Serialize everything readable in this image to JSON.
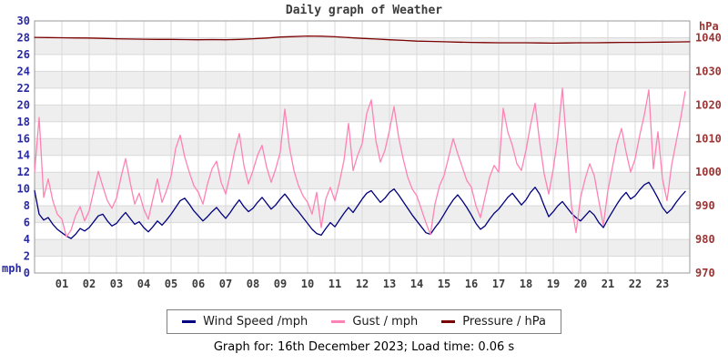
{
  "title": "Daily graph of Weather",
  "caption": {
    "text": "Graph for: 16th December 2023; Load time: 0.06 s"
  },
  "axis_units": {
    "left": "mph",
    "right": "hPa"
  },
  "legend": {
    "items": [
      {
        "label": "Wind Speed /mph",
        "color": "#00007e"
      },
      {
        "label": "Gust / mph",
        "color": "#ff82b4"
      },
      {
        "label": "Pressure / hPa",
        "color": "#7d0000"
      }
    ]
  },
  "colors": {
    "band_gray": "#eeeeee",
    "grid": "#d9d9d9",
    "plot_border": "#9a9a9a",
    "left_axis_text": "#2929a3",
    "right_axis_text": "#9c3434",
    "x_axis_text": "#3c3c3c",
    "wind": "#00007e",
    "gust": "#ff82b4",
    "pressure": "#7d0000"
  },
  "chart_data": {
    "type": "line",
    "title": "Daily graph of Weather",
    "grid": true,
    "legend_position": "bottom-center",
    "x_axis": {
      "range_hours": [
        0,
        24
      ],
      "tick_labels": [
        "01",
        "02",
        "03",
        "04",
        "05",
        "06",
        "07",
        "08",
        "09",
        "10",
        "11",
        "12",
        "13",
        "14",
        "15",
        "16",
        "17",
        "18",
        "19",
        "20",
        "21",
        "22",
        "23"
      ]
    },
    "y_left": {
      "label": "mph",
      "range": [
        0,
        30
      ],
      "ticks": [
        30,
        28,
        26,
        24,
        22,
        20,
        18,
        16,
        14,
        12,
        10,
        8,
        6,
        4,
        2,
        0
      ]
    },
    "y_right": {
      "label": "hPa",
      "range": [
        970,
        1045
      ],
      "ticks": [
        1040,
        1030,
        1020,
        1010,
        1000,
        990,
        980,
        970
      ]
    },
    "series": [
      {
        "name": "Wind Speed /mph",
        "axis": "left",
        "color": "#00007e",
        "interval_minutes": 10,
        "values": [
          9.8,
          7.0,
          6.3,
          6.6,
          5.8,
          5.2,
          4.8,
          4.4,
          4.1,
          4.6,
          5.3,
          5.0,
          5.4,
          6.1,
          6.8,
          7.0,
          6.2,
          5.6,
          5.9,
          6.6,
          7.2,
          6.5,
          5.8,
          6.1,
          5.4,
          4.9,
          5.5,
          6.2,
          5.7,
          6.3,
          7.0,
          7.8,
          8.6,
          8.9,
          8.2,
          7.4,
          6.8,
          6.2,
          6.7,
          7.3,
          7.8,
          7.1,
          6.5,
          7.2,
          8.0,
          8.7,
          7.9,
          7.3,
          7.7,
          8.4,
          9.0,
          8.3,
          7.6,
          8.1,
          8.8,
          9.4,
          8.7,
          7.9,
          7.3,
          6.6,
          5.9,
          5.2,
          4.7,
          4.5,
          5.3,
          6.0,
          5.5,
          6.3,
          7.1,
          7.8,
          7.2,
          8.0,
          8.8,
          9.5,
          9.8,
          9.1,
          8.4,
          8.9,
          9.6,
          10.0,
          9.3,
          8.5,
          7.7,
          6.9,
          6.2,
          5.5,
          4.8,
          4.6,
          5.4,
          6.1,
          7.0,
          7.9,
          8.7,
          9.3,
          8.6,
          7.8,
          6.9,
          5.9,
          5.2,
          5.6,
          6.4,
          7.1,
          7.6,
          8.3,
          9.0,
          9.5,
          8.8,
          8.1,
          8.7,
          9.6,
          10.2,
          9.4,
          8.0,
          6.7,
          7.3,
          8.0,
          8.5,
          7.8,
          7.1,
          6.6,
          6.2,
          6.8,
          7.4,
          6.9,
          6.0,
          5.4,
          6.4,
          7.3,
          8.2,
          9.0,
          9.6,
          8.8,
          9.2,
          9.9,
          10.5,
          10.8,
          9.9,
          8.9,
          7.8,
          7.1,
          7.6,
          8.4,
          9.1,
          9.7
        ]
      },
      {
        "name": "Gust / mph",
        "axis": "left",
        "color": "#ff82b4",
        "interval_minutes": 10,
        "values": [
          12.0,
          18.5,
          9.0,
          11.2,
          8.6,
          7.0,
          6.4,
          4.3,
          5.1,
          6.8,
          7.9,
          6.2,
          7.4,
          9.8,
          12.1,
          10.3,
          8.6,
          7.7,
          8.9,
          11.4,
          13.6,
          10.8,
          8.2,
          9.5,
          7.6,
          6.4,
          8.8,
          11.2,
          8.4,
          9.8,
          11.5,
          14.8,
          16.4,
          13.8,
          12.0,
          10.4,
          9.6,
          8.2,
          10.6,
          12.4,
          13.3,
          10.8,
          9.4,
          11.8,
          14.6,
          16.6,
          12.8,
          10.6,
          12.2,
          14.0,
          15.2,
          12.6,
          10.8,
          12.4,
          14.4,
          19.5,
          15.0,
          12.2,
          10.4,
          9.2,
          8.4,
          7.0,
          9.6,
          5.4,
          8.8,
          10.2,
          8.6,
          10.8,
          13.4,
          17.8,
          12.2,
          14.0,
          15.4,
          19.0,
          20.6,
          15.8,
          13.2,
          14.6,
          17.0,
          19.8,
          16.2,
          13.6,
          11.4,
          10.0,
          9.2,
          7.6,
          6.0,
          4.6,
          8.2,
          10.4,
          11.6,
          13.8,
          16.0,
          14.2,
          12.6,
          11.0,
          10.2,
          8.0,
          6.6,
          9.0,
          11.4,
          12.8,
          12.0,
          19.6,
          16.8,
          15.2,
          13.0,
          12.2,
          14.6,
          17.6,
          20.2,
          15.6,
          11.8,
          9.4,
          12.4,
          16.2,
          22.0,
          14.8,
          8.0,
          4.8,
          9.0,
          11.2,
          13.0,
          11.6,
          8.6,
          5.7,
          9.8,
          12.6,
          15.4,
          17.2,
          14.4,
          12.0,
          13.6,
          16.4,
          18.8,
          21.8,
          12.4,
          16.8,
          11.2,
          8.6,
          12.8,
          15.6,
          18.4,
          21.6
        ]
      },
      {
        "name": "Pressure / hPa",
        "axis": "right",
        "color": "#7d0000",
        "interval_minutes": 30,
        "values": [
          1040.1,
          1040.05,
          1040.0,
          1039.95,
          1039.9,
          1039.8,
          1039.7,
          1039.6,
          1039.55,
          1039.5,
          1039.5,
          1039.45,
          1039.4,
          1039.45,
          1039.4,
          1039.5,
          1039.7,
          1039.9,
          1040.2,
          1040.35,
          1040.5,
          1040.45,
          1040.3,
          1040.05,
          1039.8,
          1039.6,
          1039.4,
          1039.2,
          1039.0,
          1038.9,
          1038.8,
          1038.7,
          1038.6,
          1038.55,
          1038.5,
          1038.5,
          1038.5,
          1038.45,
          1038.4,
          1038.45,
          1038.5,
          1038.5,
          1038.55,
          1038.6,
          1038.6,
          1038.65,
          1038.7,
          1038.75,
          1038.8
        ]
      }
    ]
  }
}
